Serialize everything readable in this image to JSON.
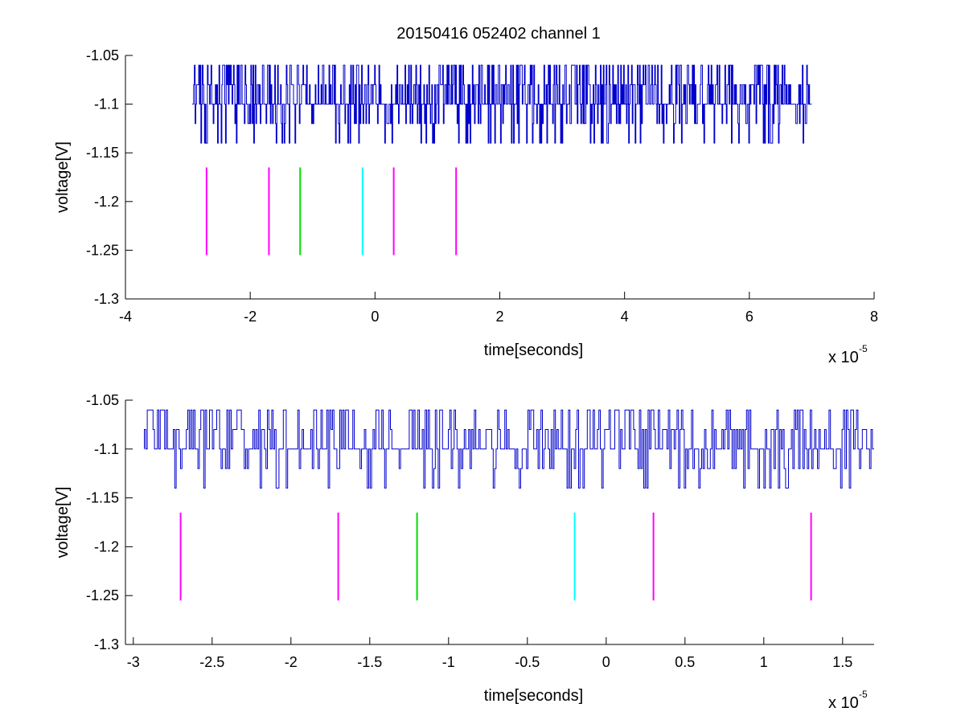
{
  "title": "20150416 052402 channel 1",
  "chart_data": [
    {
      "type": "line",
      "title": "20150416 052402 channel 1",
      "xlabel": "time[seconds]",
      "ylabel": "voltage[V]",
      "x_multiplier_label": "x 10",
      "x_multiplier_exp": "-5",
      "xlim": [
        -4,
        8
      ],
      "ylim": [
        -1.3,
        -1.05
      ],
      "xticks": [
        -4,
        -2,
        0,
        2,
        4,
        6,
        8
      ],
      "xtick_labels": [
        "-4",
        "-2",
        "0",
        "2",
        "4",
        "6",
        "8"
      ],
      "yticks": [
        -1.3,
        -1.25,
        -1.2,
        -1.15,
        -1.1,
        -1.05
      ],
      "ytick_labels": [
        "-1.3",
        "-1.25",
        "-1.2",
        "-1.15",
        "-1.1",
        "-1.05"
      ],
      "grid": false,
      "series": [
        {
          "color": "#0000cc",
          "x_range": [
            -2.93,
            7.0
          ],
          "levels": [
            -1.14,
            -1.12,
            -1.1,
            -1.08,
            -1.06
          ],
          "baseline": -1.1
        }
      ],
      "markers": [
        {
          "x": -2.7,
          "y_range": [
            -1.255,
            -1.165
          ],
          "color": "#ff00ff"
        },
        {
          "x": -1.7,
          "y_range": [
            -1.255,
            -1.165
          ],
          "color": "#ff00ff"
        },
        {
          "x": -1.2,
          "y_range": [
            -1.255,
            -1.165
          ],
          "color": "#00dd00"
        },
        {
          "x": -0.2,
          "y_range": [
            -1.255,
            -1.165
          ],
          "color": "#00ffff"
        },
        {
          "x": 0.3,
          "y_range": [
            -1.255,
            -1.165
          ],
          "color": "#ff00ff"
        },
        {
          "x": 1.3,
          "y_range": [
            -1.255,
            -1.165
          ],
          "color": "#ff00ff"
        }
      ]
    },
    {
      "type": "line",
      "xlabel": "time[seconds]",
      "ylabel": "voltage[V]",
      "x_multiplier_label": "x 10",
      "x_multiplier_exp": "-5",
      "xlim": [
        -3.05,
        1.7
      ],
      "ylim": [
        -1.3,
        -1.05
      ],
      "xticks": [
        -3,
        -2.5,
        -2,
        -1.5,
        -1,
        -0.5,
        0,
        0.5,
        1,
        1.5
      ],
      "xtick_labels": [
        "-3",
        "-2.5",
        "-2",
        "-1.5",
        "-1",
        "-0.5",
        "0",
        "0.5",
        "1",
        "1.5"
      ],
      "yticks": [
        -1.3,
        -1.25,
        -1.2,
        -1.15,
        -1.1,
        -1.05
      ],
      "ytick_labels": [
        "-1.3",
        "-1.25",
        "-1.2",
        "-1.15",
        "-1.1",
        "-1.05"
      ],
      "grid": false,
      "series": [
        {
          "color": "#0000cc",
          "x_range": [
            -2.93,
            1.7
          ],
          "levels": [
            -1.14,
            -1.12,
            -1.1,
            -1.08,
            -1.06
          ],
          "baseline": -1.1
        }
      ],
      "markers": [
        {
          "x": -2.7,
          "y_range": [
            -1.255,
            -1.165
          ],
          "color": "#ff00ff"
        },
        {
          "x": -1.7,
          "y_range": [
            -1.255,
            -1.165
          ],
          "color": "#ff00ff"
        },
        {
          "x": -1.2,
          "y_range": [
            -1.255,
            -1.165
          ],
          "color": "#00dd00"
        },
        {
          "x": -0.2,
          "y_range": [
            -1.255,
            -1.165
          ],
          "color": "#00ffff"
        },
        {
          "x": 0.3,
          "y_range": [
            -1.255,
            -1.165
          ],
          "color": "#ff00ff"
        },
        {
          "x": 1.3,
          "y_range": [
            -1.255,
            -1.165
          ],
          "color": "#ff00ff"
        }
      ]
    }
  ]
}
